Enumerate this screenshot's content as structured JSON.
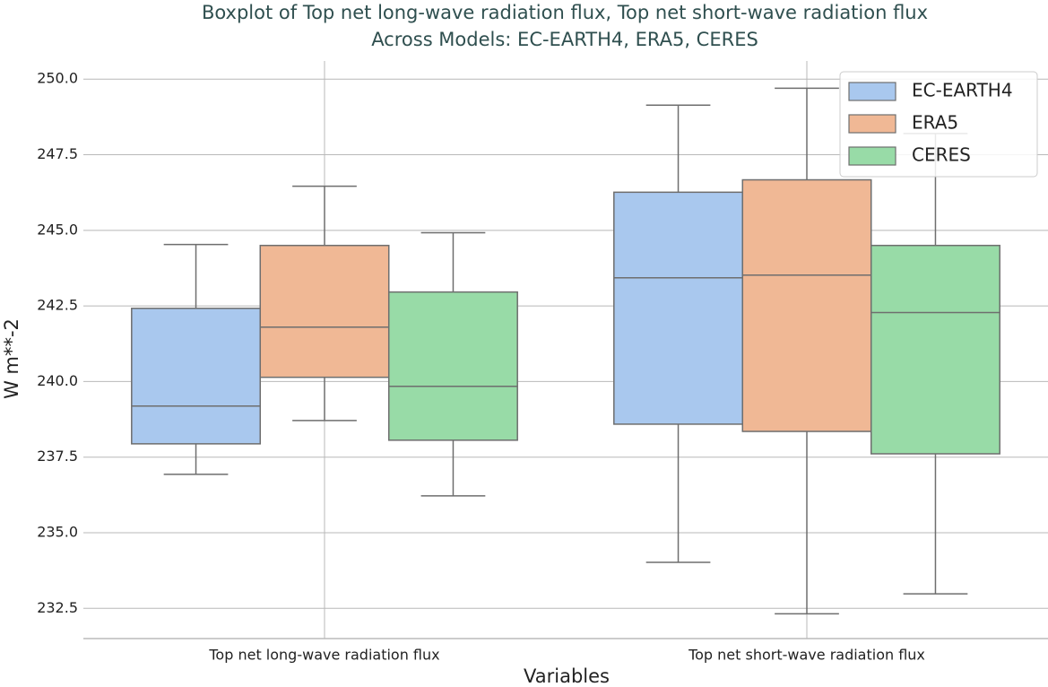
{
  "chart_data": {
    "type": "boxplot",
    "title": "Boxplot of Top net long-wave radiation flux, Top net short-wave radiation flux",
    "subtitle": "Across Models: EC-EARTH4, ERA5, CERES",
    "x_label": "Variables",
    "y_label": "W m**-2",
    "categories": [
      "Top net long-wave radiation flux",
      "Top net short-wave radiation flux"
    ],
    "ylim": [
      231.5,
      250.6
    ],
    "yticks": [
      {
        "value": 232.5,
        "label": "232.5"
      },
      {
        "value": 235,
        "label": "235.0"
      },
      {
        "value": 237.5,
        "label": "237.5"
      },
      {
        "value": 240,
        "label": "240.0"
      },
      {
        "value": 242.5,
        "label": "242.5"
      },
      {
        "value": 245,
        "label": "245.0"
      },
      {
        "value": 247.5,
        "label": "247.5"
      },
      {
        "value": 250,
        "label": "250.0"
      }
    ],
    "grid": true,
    "legend_position": "upper-right",
    "series": [
      {
        "name": "EC-EARTH4",
        "color": "#a9c8ee",
        "boxes": [
          {
            "whislo": 236.93,
            "q1": 237.94,
            "med": 239.19,
            "q3": 242.42,
            "whishi": 244.53
          },
          {
            "whislo": 234.02,
            "q1": 238.59,
            "med": 243.43,
            "q3": 246.26,
            "whishi": 249.14
          }
        ]
      },
      {
        "name": "ERA5",
        "color": "#f0b895",
        "boxes": [
          {
            "whislo": 238.71,
            "q1": 240.14,
            "med": 241.8,
            "q3": 244.5,
            "whishi": 246.46
          },
          {
            "whislo": 232.32,
            "q1": 238.35,
            "med": 243.52,
            "q3": 246.67,
            "whishi": 249.7
          }
        ]
      },
      {
        "name": "CERES",
        "color": "#98dba7",
        "boxes": [
          {
            "whislo": 236.22,
            "q1": 238.06,
            "med": 239.84,
            "q3": 242.96,
            "whishi": 244.92
          },
          {
            "whislo": 232.98,
            "q1": 237.61,
            "med": 242.28,
            "q3": 244.5,
            "whishi": 248.2
          }
        ]
      }
    ]
  }
}
